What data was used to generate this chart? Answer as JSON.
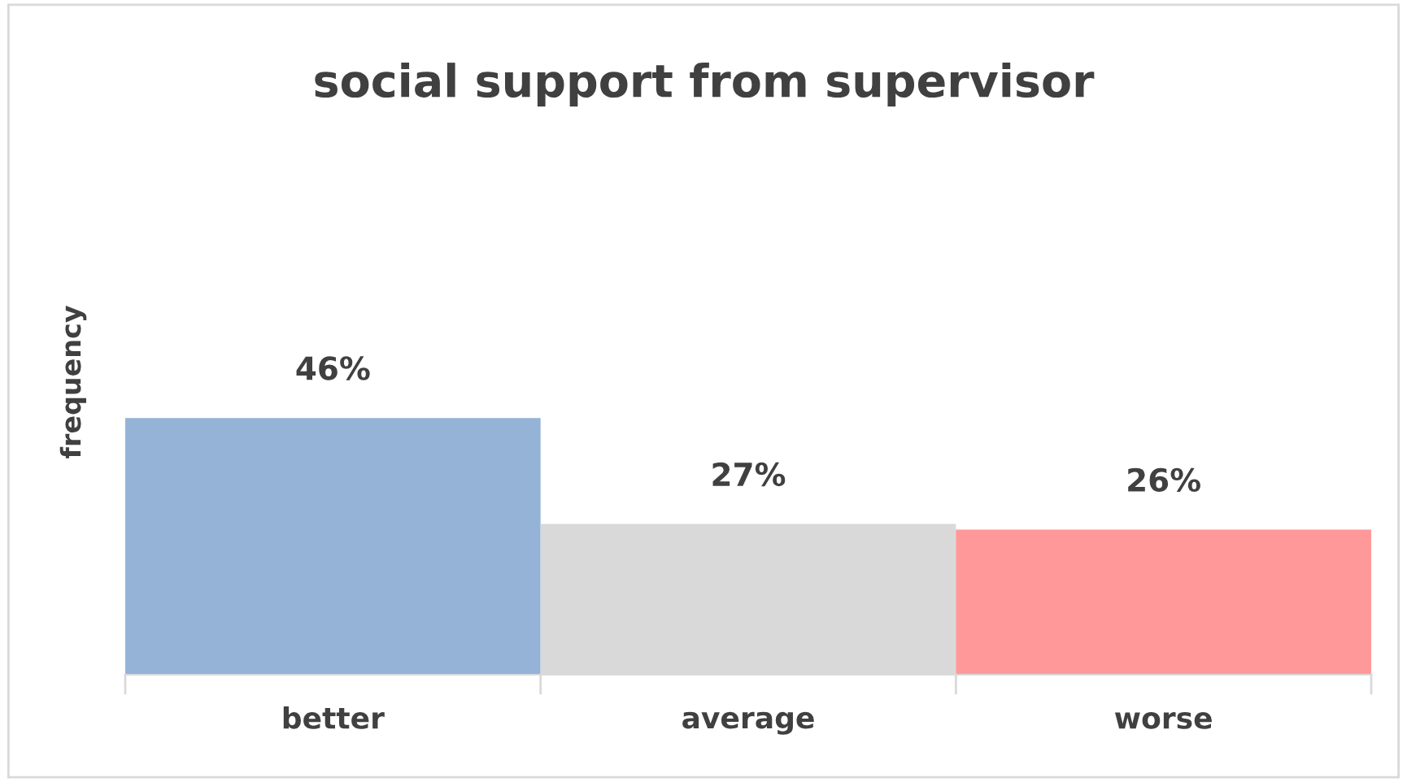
{
  "chart_data": {
    "type": "bar",
    "title": "social support from supervisor",
    "ylabel": "frequency",
    "categories": [
      "better",
      "average",
      "worse"
    ],
    "values": [
      46,
      27,
      26
    ],
    "colors": [
      "#95b3d7",
      "#d9d9d9",
      "#ff9999"
    ],
    "value_labels": [
      "46%",
      "27%",
      "26%"
    ],
    "grid": false,
    "legend": false
  }
}
